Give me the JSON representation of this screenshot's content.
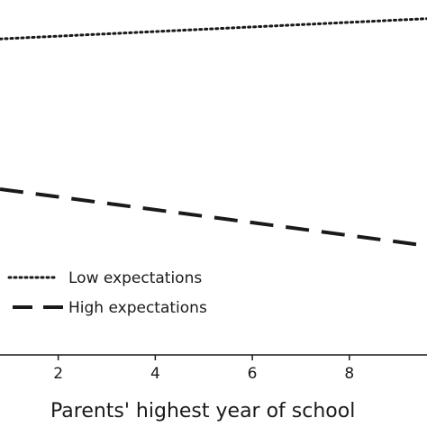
{
  "chart_data": {
    "type": "line",
    "title": "",
    "xlabel": "Parents' highest year of school",
    "ylabel": "",
    "xlim": [
      0.8,
      9.6
    ],
    "ylim": [
      0,
      1
    ],
    "x_ticks": [
      2,
      4,
      6,
      8
    ],
    "tick_labels": [
      "2",
      "4",
      "6",
      "8"
    ],
    "grid": false,
    "legend_position": "bottom-left",
    "series": [
      {
        "name": "Low expectations",
        "style": "dotted",
        "color": "#1a1a1a",
        "x": [
          0.8,
          9.6
        ],
        "y": [
          0.938,
          0.998
        ]
      },
      {
        "name": "High expectations",
        "style": "dashed",
        "color": "#1a1a1a",
        "x": [
          0.8,
          9.6
        ],
        "y": [
          0.492,
          0.324
        ]
      }
    ]
  }
}
